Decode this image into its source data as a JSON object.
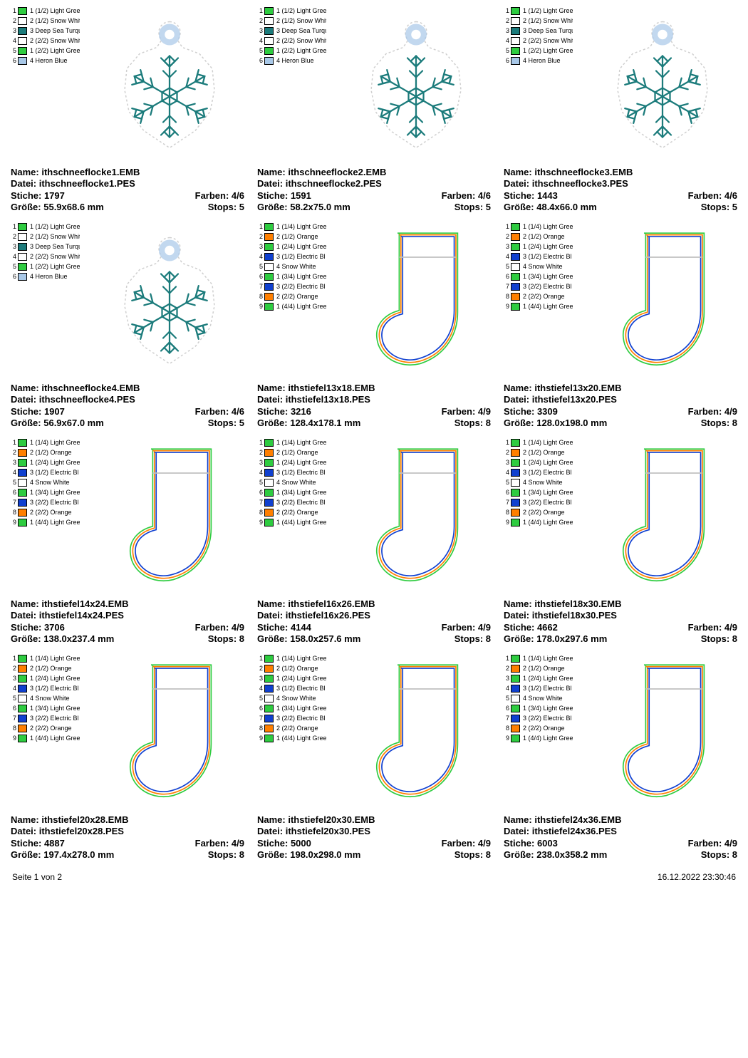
{
  "colors": {
    "lightGreen": "#2ecc40",
    "snowWhite": "#ffffff",
    "deepSeaTurquoise": "#1b7b7b",
    "heronBlue": "#a8c8e8",
    "orange": "#ff7f00",
    "electricBlue": "#1040d0"
  },
  "thread_sets": {
    "snowflake": [
      {
        "n": "1",
        "label": "1 (1/2) Light Gree",
        "color": "#2ecc40"
      },
      {
        "n": "2",
        "label": "2 (1/2) Snow Whit",
        "color": "#ffffff"
      },
      {
        "n": "3",
        "label": "3 Deep Sea Turqu",
        "color": "#1b7b7b"
      },
      {
        "n": "4",
        "label": "2 (2/2) Snow Whit",
        "color": "#ffffff"
      },
      {
        "n": "5",
        "label": "1 (2/2) Light Gree",
        "color": "#2ecc40"
      },
      {
        "n": "6",
        "label": "4 Heron Blue",
        "color": "#a8c8e8"
      }
    ],
    "stocking": [
      {
        "n": "1",
        "label": "1 (1/4) Light Gree",
        "color": "#2ecc40"
      },
      {
        "n": "2",
        "label": "2 (1/2) Orange",
        "color": "#ff7f00"
      },
      {
        "n": "3",
        "label": "1 (2/4) Light Gree",
        "color": "#2ecc40"
      },
      {
        "n": "4",
        "label": "3 (1/2) Electric Bl",
        "color": "#1040d0"
      },
      {
        "n": "5",
        "label": "4 Snow White",
        "color": "#ffffff"
      },
      {
        "n": "6",
        "label": "1 (3/4) Light Gree",
        "color": "#2ecc40"
      },
      {
        "n": "7",
        "label": "3 (2/2) Electric Bl",
        "color": "#1040d0"
      },
      {
        "n": "8",
        "label": "2 (2/2) Orange",
        "color": "#ff7f00"
      },
      {
        "n": "9",
        "label": "1 (4/4) Light Gree",
        "color": "#2ecc40"
      }
    ]
  },
  "labels": {
    "name": "Name:",
    "datei": "Datei:",
    "stiche": "Stiche:",
    "groesse": "Größe:",
    "farben": "Farben:",
    "stops": "Stops:"
  },
  "items": [
    {
      "design": "snowflake",
      "threads": "snowflake",
      "name": "ithschneeflocke1.EMB",
      "datei": "ithschneeflocke1.PES",
      "stiche": "1797",
      "groesse": "55.9x68.6 mm",
      "farben": "4/6",
      "stops": "5"
    },
    {
      "design": "snowflake",
      "threads": "snowflake",
      "name": "ithschneeflocke2.EMB",
      "datei": "ithschneeflocke2.PES",
      "stiche": "1591",
      "groesse": "58.2x75.0 mm",
      "farben": "4/6",
      "stops": "5"
    },
    {
      "design": "snowflake",
      "threads": "snowflake",
      "name": "ithschneeflocke3.EMB",
      "datei": "ithschneeflocke3.PES",
      "stiche": "1443",
      "groesse": "48.4x66.0 mm",
      "farben": "4/6",
      "stops": "5"
    },
    {
      "design": "snowflake",
      "threads": "snowflake",
      "name": "ithschneeflocke4.EMB",
      "datei": "ithschneeflocke4.PES",
      "stiche": "1907",
      "groesse": "56.9x67.0 mm",
      "farben": "4/6",
      "stops": "5"
    },
    {
      "design": "stocking",
      "threads": "stocking",
      "name": "ithstiefel13x18.EMB",
      "datei": "ithstiefel13x18.PES",
      "stiche": "3216",
      "groesse": "128.4x178.1 mm",
      "farben": "4/9",
      "stops": "8"
    },
    {
      "design": "stocking",
      "threads": "stocking",
      "name": "ithstiefel13x20.EMB",
      "datei": "ithstiefel13x20.PES",
      "stiche": "3309",
      "groesse": "128.0x198.0 mm",
      "farben": "4/9",
      "stops": "8"
    },
    {
      "design": "stocking",
      "threads": "stocking",
      "name": "ithstiefel14x24.EMB",
      "datei": "ithstiefel14x24.PES",
      "stiche": "3706",
      "groesse": "138.0x237.4 mm",
      "farben": "4/9",
      "stops": "8"
    },
    {
      "design": "stocking",
      "threads": "stocking",
      "name": "ithstiefel16x26.EMB",
      "datei": "ithstiefel16x26.PES",
      "stiche": "4144",
      "groesse": "158.0x257.6 mm",
      "farben": "4/9",
      "stops": "8"
    },
    {
      "design": "stocking",
      "threads": "stocking",
      "name": "ithstiefel18x30.EMB",
      "datei": "ithstiefel18x30.PES",
      "stiche": "4662",
      "groesse": "178.0x297.6 mm",
      "farben": "4/9",
      "stops": "8"
    },
    {
      "design": "stocking",
      "threads": "stocking",
      "name": "ithstiefel20x28.EMB",
      "datei": "ithstiefel20x28.PES",
      "stiche": "4887",
      "groesse": "197.4x278.0 mm",
      "farben": "4/9",
      "stops": "8"
    },
    {
      "design": "stocking",
      "threads": "stocking",
      "name": "ithstiefel20x30.EMB",
      "datei": "ithstiefel20x30.PES",
      "stiche": "5000",
      "groesse": "198.0x298.0 mm",
      "farben": "4/9",
      "stops": "8"
    },
    {
      "design": "stocking",
      "threads": "stocking",
      "name": "ithstiefel24x36.EMB",
      "datei": "ithstiefel24x36.PES",
      "stiche": "6003",
      "groesse": "238.0x358.2 mm",
      "farben": "4/9",
      "stops": "8"
    }
  ],
  "footer": {
    "left": "Seite 1 von 2",
    "right": "16.12.2022 23:30:46"
  }
}
